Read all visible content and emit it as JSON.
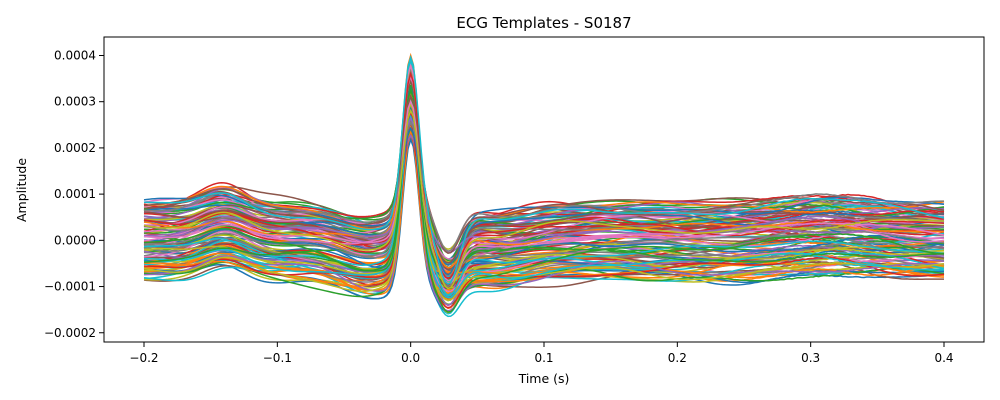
{
  "chart_data": {
    "type": "line",
    "title": "ECG Templates - S0187",
    "xlabel": "Time (s)",
    "ylabel": "Amplitude",
    "xlim": [
      -0.23,
      0.43
    ],
    "ylim": [
      -0.00022,
      0.00044
    ],
    "x_ticks": [
      -0.2,
      -0.1,
      0.0,
      0.1,
      0.2,
      0.3,
      0.4
    ],
    "x_tick_labels": [
      "−0.2",
      "−0.1",
      "0.0",
      "0.1",
      "0.2",
      "0.3",
      "0.4"
    ],
    "y_ticks": [
      -0.0002,
      -0.0001,
      0.0,
      0.0001,
      0.0002,
      0.0003,
      0.0004
    ],
    "y_tick_labels": [
      "−0.0002",
      "−0.0001",
      "0.0000",
      "0.0001",
      "0.0002",
      "0.0003",
      "0.0004"
    ],
    "x_range": [
      -0.2,
      0.4
    ],
    "grid": false,
    "legend": "none",
    "template_shape": {
      "x": [
        -0.2,
        -0.17,
        -0.14,
        -0.11,
        -0.08,
        -0.05,
        -0.03,
        -0.015,
        0.0,
        0.015,
        0.03,
        0.05,
        0.08,
        0.12,
        0.16,
        0.2,
        0.25,
        0.3,
        0.35,
        0.4
      ],
      "typical_y": [
        5e-06,
        1e-05,
        2.5e-05,
        5e-06,
        -2e-05,
        -4e-05,
        -5e-05,
        0.0001,
        0.00033,
        3e-05,
        -0.00011,
        -7e-05,
        -4e-05,
        -1e-05,
        0.0,
        0.0,
        -5e-06,
        5e-06,
        0.0,
        0.0
      ]
    },
    "series_count": 120,
    "peak_range": [
      0.00024,
      0.000415
    ],
    "trough_range": [
      -0.00019,
      -4e-05
    ],
    "colors": [
      "#1f77b4",
      "#ff7f0e",
      "#2ca02c",
      "#d62728",
      "#9467bd",
      "#8c564b",
      "#e377c2",
      "#7f7f7f",
      "#bcbd22",
      "#17becf"
    ]
  }
}
